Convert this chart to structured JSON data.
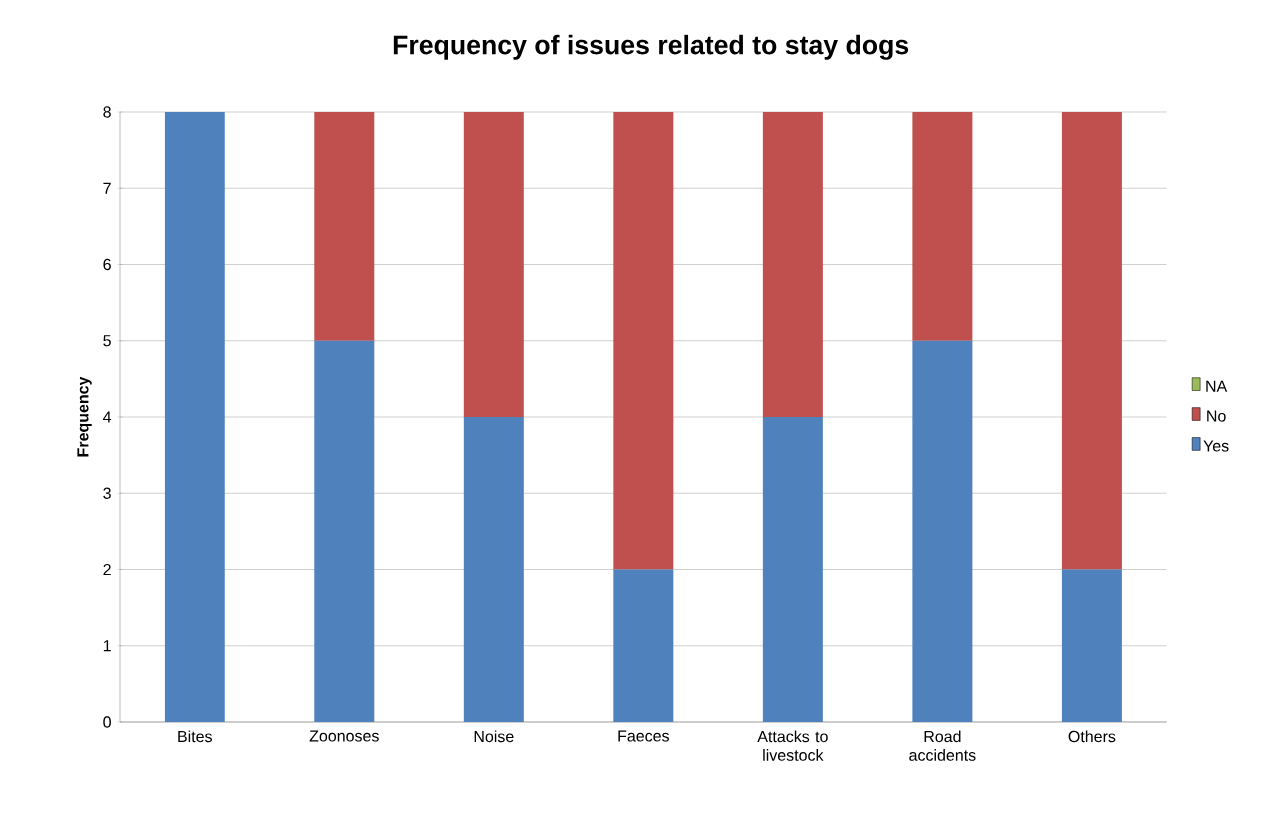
{
  "chart_data": {
    "type": "bar",
    "stacked": true,
    "title": "Frequency of issues related to stay dogs",
    "ylabel": "Frequency",
    "categories": [
      "Bites",
      "Zoonoses",
      "Noise",
      "Faeces",
      "Attacks to livestock",
      "Road accidents",
      "Others"
    ],
    "series": [
      {
        "name": "Yes",
        "color": "#4f81bd",
        "values": [
          8,
          5,
          4,
          2,
          4,
          5,
          2
        ]
      },
      {
        "name": "No",
        "color": "#c0504d",
        "values": [
          0,
          3,
          4,
          6,
          4,
          3,
          6
        ]
      },
      {
        "name": "NA",
        "color": "#9bbb59",
        "values": [
          0,
          0,
          0,
          0,
          0,
          0,
          0
        ]
      }
    ],
    "ylim": [
      0,
      8
    ],
    "yticks": [
      0,
      1,
      2,
      3,
      4,
      5,
      6,
      7,
      8
    ],
    "grid": "y",
    "legend": "right"
  }
}
